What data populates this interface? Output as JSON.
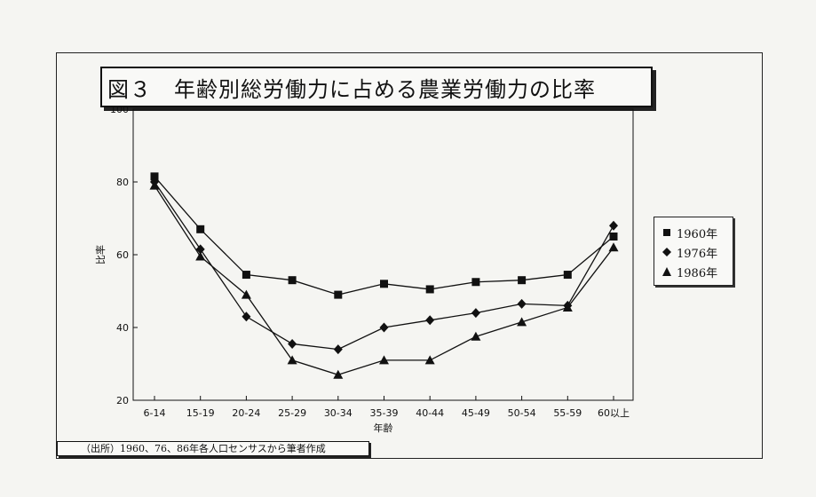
{
  "chart_data": {
    "type": "line",
    "title": "図３　年齢別総労働力に占める農業労働力の比率",
    "xlabel": "年齢",
    "ylabel": "比率",
    "ylim": [
      20,
      100
    ],
    "yticks": [
      20,
      40,
      60,
      80,
      100
    ],
    "grid": false,
    "legend_position": "right",
    "categories": [
      "6-14",
      "15-19",
      "20-24",
      "25-29",
      "30-34",
      "35-39",
      "40-44",
      "45-49",
      "50-54",
      "55-59",
      "60以上"
    ],
    "series": [
      {
        "name": "1960年",
        "marker": "square",
        "values": [
          81.5,
          67,
          54.5,
          53,
          49,
          52,
          50.5,
          52.5,
          53,
          54.5,
          65
        ]
      },
      {
        "name": "1976年",
        "marker": "diamond",
        "values": [
          80,
          61.5,
          43,
          35.5,
          34,
          40,
          42,
          44,
          46.5,
          46,
          68
        ]
      },
      {
        "name": "1986年",
        "marker": "triangle",
        "values": [
          79,
          59.5,
          49,
          31,
          27,
          31,
          31,
          37.5,
          41.5,
          45.5,
          62
        ]
      }
    ],
    "source": "（出所）1960、76、86年各人口センサスから筆者作成"
  },
  "colors": {
    "line": "#111111",
    "marker": "#111111"
  }
}
